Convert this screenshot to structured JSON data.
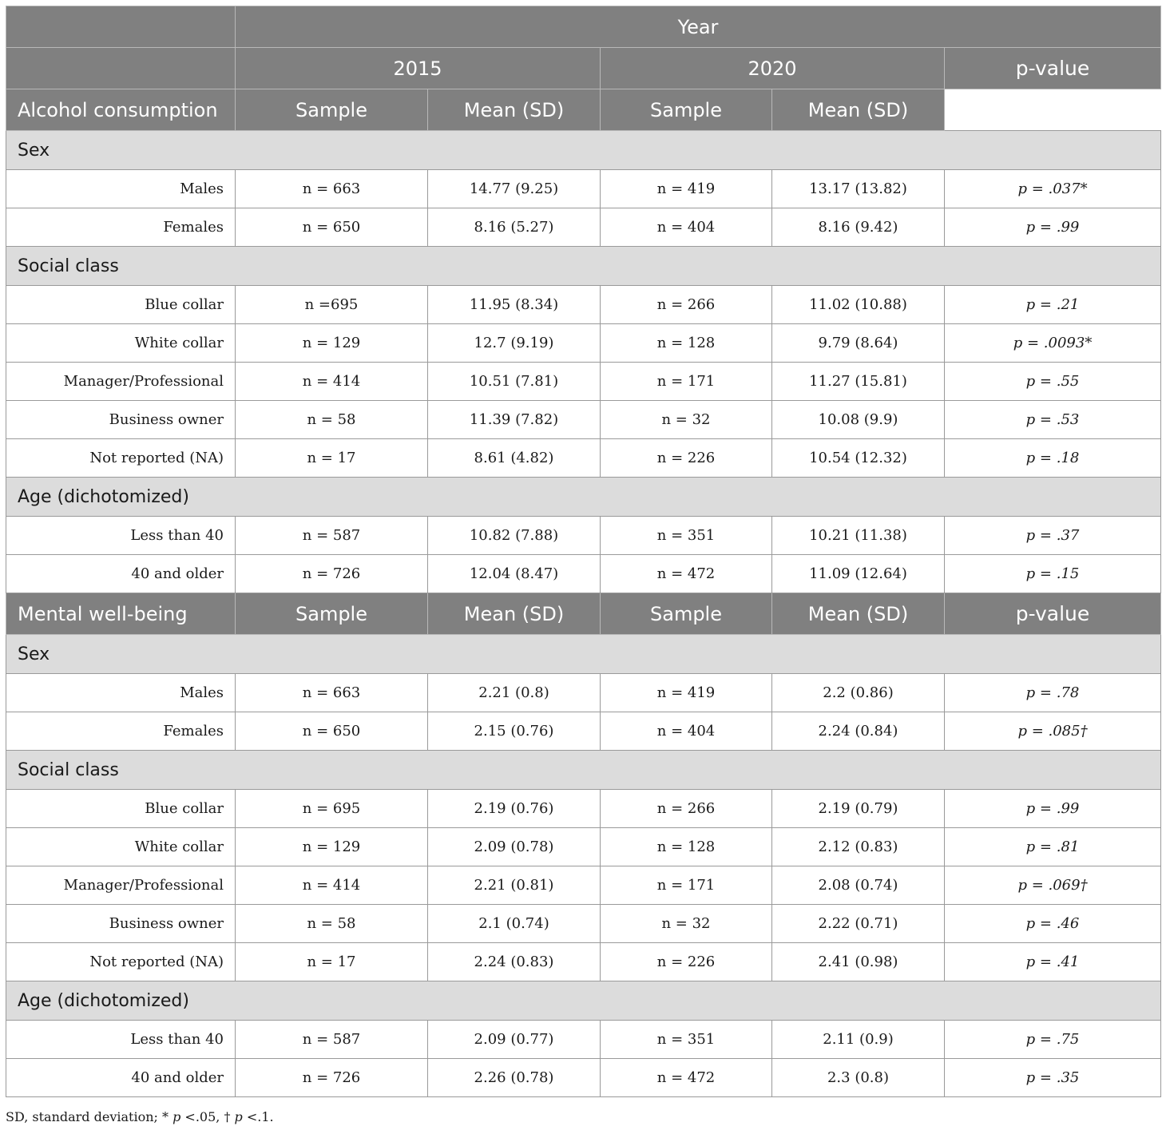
{
  "header": {
    "year": "Year",
    "y2015": "2015",
    "y2020": "2020",
    "pvalue": "p-value",
    "sample": "Sample",
    "mean_sd": "Mean (SD)"
  },
  "sections": [
    {
      "title": "Alcohol consumption",
      "groups": [
        {
          "label": "Sex",
          "rows": [
            {
              "label": "Males",
              "s2015": "n = 663",
              "m2015": "14.77 (9.25)",
              "s2020": "n = 419",
              "m2020": "13.17 (13.82)",
              "p": "p = .037*"
            },
            {
              "label": "Females",
              "s2015": "n = 650",
              "m2015": "8.16 (5.27)",
              "s2020": "n = 404",
              "m2020": "8.16 (9.42)",
              "p": "p = .99"
            }
          ]
        },
        {
          "label": "Social class",
          "rows": [
            {
              "label": "Blue collar",
              "s2015": "n =695",
              "m2015": "11.95 (8.34)",
              "s2020": "n = 266",
              "m2020": "11.02 (10.88)",
              "p": "p = .21"
            },
            {
              "label": "White collar",
              "s2015": "n = 129",
              "m2015": "12.7 (9.19)",
              "s2020": "n = 128",
              "m2020": "9.79 (8.64)",
              "p": "p = .0093*"
            },
            {
              "label": "Manager/Professional",
              "s2015": "n = 414",
              "m2015": "10.51 (7.81)",
              "s2020": "n = 171",
              "m2020": "11.27 (15.81)",
              "p": "p = .55"
            },
            {
              "label": "Business owner",
              "s2015": "n = 58",
              "m2015": "11.39 (7.82)",
              "s2020": "n = 32",
              "m2020": "10.08 (9.9)",
              "p": "p = .53"
            },
            {
              "label": "Not reported (NA)",
              "s2015": "n = 17",
              "m2015": "8.61 (4.82)",
              "s2020": "n = 226",
              "m2020": "10.54 (12.32)",
              "p": "p = .18"
            }
          ]
        },
        {
          "label": "Age (dichotomized)",
          "rows": [
            {
              "label": "Less than 40",
              "s2015": "n = 587",
              "m2015": "10.82 (7.88)",
              "s2020": "n = 351",
              "m2020": "10.21 (11.38)",
              "p": "p = .37"
            },
            {
              "label": "40 and older",
              "s2015": "n = 726",
              "m2015": "12.04 (8.47)",
              "s2020": "n = 472",
              "m2020": "11.09 (12.64)",
              "p": "p = .15"
            }
          ]
        }
      ]
    },
    {
      "title": "Mental well-being",
      "groups": [
        {
          "label": "Sex",
          "rows": [
            {
              "label": "Males",
              "s2015": "n = 663",
              "m2015": "2.21 (0.8)",
              "s2020": "n = 419",
              "m2020": "2.2 (0.86)",
              "p": "p = .78"
            },
            {
              "label": "Females",
              "s2015": "n = 650",
              "m2015": "2.15 (0.76)",
              "s2020": "n = 404",
              "m2020": "2.24 (0.84)",
              "p": "p = .085†"
            }
          ]
        },
        {
          "label": "Social class",
          "rows": [
            {
              "label": "Blue collar",
              "s2015": "n = 695",
              "m2015": "2.19 (0.76)",
              "s2020": "n = 266",
              "m2020": "2.19 (0.79)",
              "p": "p = .99"
            },
            {
              "label": "White collar",
              "s2015": "n = 129",
              "m2015": "2.09 (0.78)",
              "s2020": "n = 128",
              "m2020": "2.12 (0.83)",
              "p": "p = .81"
            },
            {
              "label": "Manager/Professional",
              "s2015": "n = 414",
              "m2015": "2.21 (0.81)",
              "s2020": "n = 171",
              "m2020": "2.08 (0.74)",
              "p": "p = .069†"
            },
            {
              "label": "Business owner",
              "s2015": "n = 58",
              "m2015": "2.1 (0.74)",
              "s2020": "n = 32",
              "m2020": "2.22 (0.71)",
              "p": "p = .46"
            },
            {
              "label": "Not reported (NA)",
              "s2015": "n = 17",
              "m2015": "2.24 (0.83)",
              "s2020": "n = 226",
              "m2020": "2.41 (0.98)",
              "p": "p = .41"
            }
          ]
        },
        {
          "label": "Age (dichotomized)",
          "rows": [
            {
              "label": "Less than 40",
              "s2015": "n = 587",
              "m2015": "2.09 (0.77)",
              "s2020": "n = 351",
              "m2020": "2.11 (0.9)",
              "p": "p = .75"
            },
            {
              "label": "40 and older",
              "s2015": "n = 726",
              "m2015": "2.26 (0.78)",
              "s2020": "n = 472",
              "m2020": "2.3 (0.8)",
              "p": "p = .35"
            }
          ]
        }
      ]
    }
  ],
  "footnote": {
    "text1": "SD, standard deviation; * ",
    "p1": "p",
    "text2": " <.05, † ",
    "p2": "p",
    "text3": " <.1."
  }
}
